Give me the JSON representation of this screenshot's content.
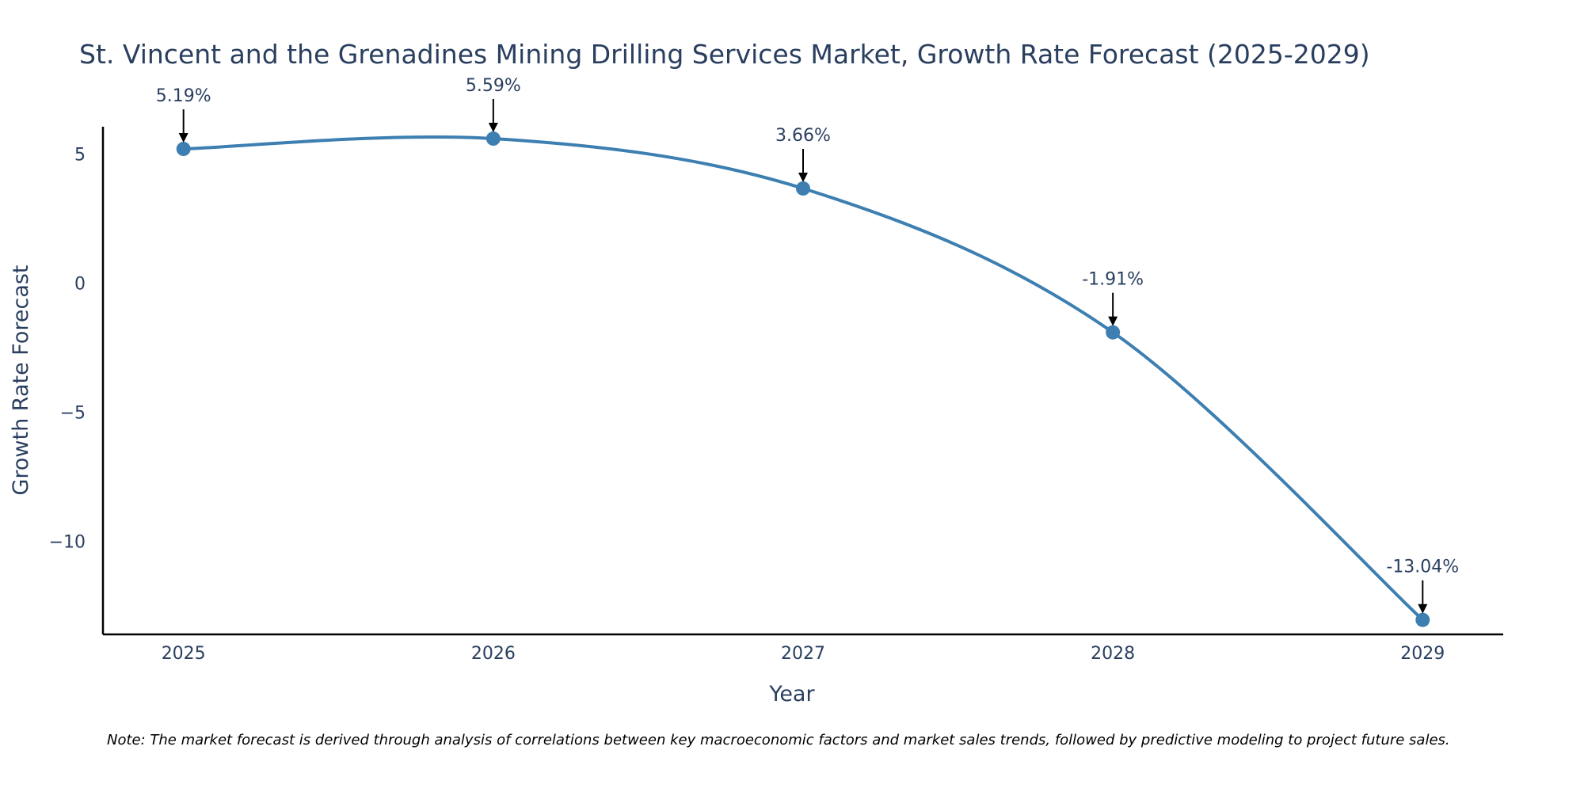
{
  "chart_data": {
    "type": "line",
    "title": "St. Vincent and the Grenadines Mining Drilling Services Market, Growth Rate Forecast (2025-2029)",
    "xlabel": "Year",
    "ylabel": "Growth Rate Forecast",
    "categories": [
      "2025",
      "2026",
      "2027",
      "2028",
      "2029"
    ],
    "series": [
      {
        "name": "Growth Rate Forecast",
        "values": [
          5.19,
          5.59,
          3.66,
          -1.91,
          -13.04
        ],
        "labels": [
          "5.19%",
          "5.59%",
          "3.66%",
          "-1.91%",
          "-13.04%"
        ]
      }
    ],
    "xlim": [
      2024.74,
      2029.26
    ],
    "ylim": [
      -13.6,
      6.05
    ],
    "yticks": [
      5,
      0,
      -5,
      -10
    ],
    "ytick_labels": [
      "5",
      "0",
      "−5",
      "−10"
    ],
    "grid": false,
    "line_color": "#3d7fb1",
    "marker_color": "#3d7fb1",
    "note": "Note: The market forecast is derived through analysis of correlations between key macroeconomic factors and market sales trends, followed by predictive modeling to project future sales."
  }
}
